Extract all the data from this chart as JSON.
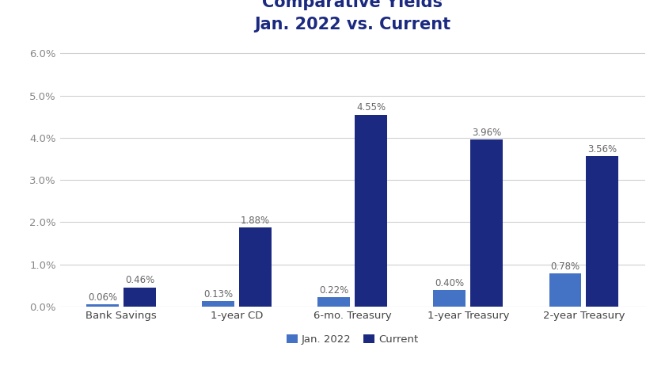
{
  "title_line1": "Comparative Yields",
  "title_line2": "Jan. 2022 vs. Current",
  "categories": [
    "Bank Savings",
    "1-year CD",
    "6-mo. Treasury",
    "1-year Treasury",
    "2-year Treasury"
  ],
  "jan2022_values": [
    0.0006,
    0.0013,
    0.0022,
    0.004,
    0.0078
  ],
  "current_values": [
    0.0046,
    0.0188,
    0.0455,
    0.0396,
    0.0356
  ],
  "jan2022_labels": [
    "0.06%",
    "0.13%",
    "0.22%",
    "0.40%",
    "0.78%"
  ],
  "current_labels": [
    "0.46%",
    "1.88%",
    "4.55%",
    "3.96%",
    "3.56%"
  ],
  "jan2022_color": "#4472C4",
  "current_color": "#1B2A80",
  "legend_labels": [
    "Jan. 2022",
    "Current"
  ],
  "ylim": [
    0,
    0.062
  ],
  "yticks": [
    0.0,
    0.01,
    0.02,
    0.03,
    0.04,
    0.05,
    0.06
  ],
  "ytick_labels": [
    "0.0%",
    "1.0%",
    "2.0%",
    "3.0%",
    "4.0%",
    "5.0%",
    "6.0%"
  ],
  "bar_width": 0.28,
  "background_color": "#ffffff",
  "title_color": "#1B2A80",
  "annot_color": "#666666",
  "grid_color": "#d0d0d0",
  "title_fontsize": 15,
  "label_fontsize": 9.5,
  "tick_fontsize": 9.5,
  "annot_fontsize": 8.5,
  "xtick_fontsize": 9.5
}
